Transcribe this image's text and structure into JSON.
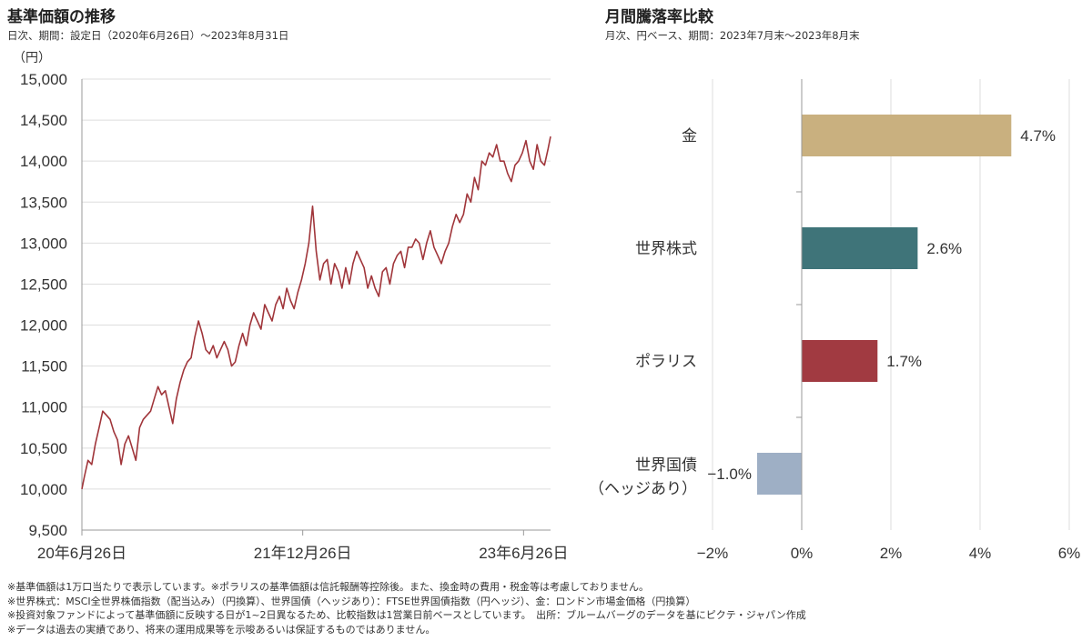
{
  "chart_data": [
    {
      "type": "line",
      "title": "基準価額の推移",
      "subtitle": "日次、期間：設定日（2020年6月26日）～2023年8月31日",
      "ylabel": "（円）",
      "ylim": [
        9500,
        15000
      ],
      "yticks": [
        9500,
        10000,
        10500,
        11000,
        11500,
        12000,
        12500,
        13000,
        13500,
        14000,
        14500,
        15000
      ],
      "ytick_labels": [
        "9,500",
        "10,000",
        "10,500",
        "11,000",
        "11,500",
        "12,000",
        "12,500",
        "13,000",
        "13,500",
        "14,000",
        "14,500",
        "15,000"
      ],
      "xlim": [
        0,
        38.2
      ],
      "xticks": [
        {
          "x": 0,
          "label": "20年6月26日"
        },
        {
          "x": 18,
          "label": "21年12月26日"
        },
        {
          "x": 36,
          "label": "23年6月26日"
        }
      ],
      "line_color": "#a0353a",
      "series": [
        {
          "name": "基準価額",
          "x": [
            0,
            0.2,
            0.5,
            0.8,
            1.1,
            1.4,
            1.7,
            2.0,
            2.3,
            2.6,
            2.9,
            3.2,
            3.5,
            3.8,
            4.1,
            4.4,
            4.7,
            5.0,
            5.3,
            5.6,
            5.9,
            6.2,
            6.5,
            6.8,
            7.1,
            7.4,
            7.7,
            8.0,
            8.3,
            8.6,
            8.9,
            9.2,
            9.5,
            9.8,
            10.1,
            10.4,
            10.7,
            11.0,
            11.3,
            11.6,
            11.9,
            12.2,
            12.5,
            12.8,
            13.1,
            13.4,
            13.7,
            14.0,
            14.3,
            14.6,
            14.9,
            15.2,
            15.5,
            15.8,
            16.1,
            16.4,
            16.7,
            17.0,
            17.3,
            17.6,
            17.9,
            18.2,
            18.5,
            18.8,
            19.1,
            19.4,
            19.7,
            20.0,
            20.3,
            20.6,
            20.9,
            21.2,
            21.5,
            21.8,
            22.1,
            22.4,
            22.7,
            23.0,
            23.3,
            23.6,
            23.9,
            24.2,
            24.5,
            24.8,
            25.1,
            25.4,
            25.7,
            26.0,
            26.3,
            26.6,
            26.9,
            27.2,
            27.5,
            27.8,
            28.1,
            28.4,
            28.7,
            29.0,
            29.3,
            29.6,
            29.9,
            30.2,
            30.5,
            30.8,
            31.1,
            31.4,
            31.7,
            32.0,
            32.3,
            32.6,
            32.9,
            33.2,
            33.5,
            33.8,
            34.1,
            34.4,
            34.7,
            35.0,
            35.3,
            35.6,
            35.9,
            36.2,
            36.5,
            36.8,
            37.1,
            37.4,
            37.7,
            38.0,
            38.2
          ],
          "values": [
            10000,
            10150,
            10350,
            10300,
            10550,
            10750,
            10950,
            10900,
            10850,
            10700,
            10600,
            10300,
            10550,
            10650,
            10500,
            10350,
            10750,
            10850,
            10900,
            10950,
            11100,
            11250,
            11150,
            11200,
            11000,
            10800,
            11100,
            11300,
            11450,
            11550,
            11600,
            11850,
            12050,
            11900,
            11700,
            11650,
            11750,
            11600,
            11700,
            11800,
            11700,
            11500,
            11550,
            11750,
            11900,
            11750,
            12000,
            12150,
            12050,
            11950,
            12250,
            12150,
            12050,
            12250,
            12350,
            12200,
            12450,
            12300,
            12200,
            12400,
            12550,
            12750,
            13000,
            13450,
            12900,
            12550,
            12750,
            12800,
            12500,
            12750,
            12650,
            12450,
            12700,
            12500,
            12750,
            12900,
            12800,
            12700,
            12450,
            12600,
            12450,
            12350,
            12650,
            12700,
            12500,
            12750,
            12850,
            12900,
            12700,
            12950,
            12950,
            13050,
            13000,
            12800,
            13000,
            13150,
            12950,
            12850,
            12750,
            12900,
            13000,
            13200,
            13350,
            13250,
            13350,
            13600,
            13500,
            13800,
            13650,
            14000,
            13950,
            14100,
            14050,
            14200,
            14000,
            14000,
            13850,
            13750,
            13950,
            14000,
            14100,
            14250,
            14000,
            13900,
            14200,
            14000,
            13950,
            14150,
            14300
          ]
        }
      ]
    },
    {
      "type": "bar",
      "orientation": "horizontal",
      "title": "月間騰落率比較",
      "subtitle": "月次、円ベース、期間：2023年7月末～2023年8月末",
      "categories": [
        "金",
        "世界株式",
        "ポラリス",
        "世界国債"
      ],
      "category_sublabels": [
        "",
        "",
        "",
        "（ヘッジあり）"
      ],
      "values": [
        4.7,
        2.6,
        1.7,
        -1.0
      ],
      "value_labels": [
        "4.7%",
        "2.6%",
        "1.7%",
        "−1.0%"
      ],
      "colors": [
        "#c9b07f",
        "#3f7479",
        "#a13a41",
        "#9eafc5"
      ],
      "xlim": [
        -2,
        6
      ],
      "xticks": [
        -2,
        0,
        2,
        4,
        6
      ],
      "xtick_labels": [
        "−2%",
        "0%",
        "2%",
        "4%",
        "6%"
      ],
      "unit": "%"
    }
  ],
  "notes": [
    "※基準価額は1万口当たりで表示しています。※ポラリスの基準価額は信託報酬等控除後。また、換金時の費用・税金等は考慮しておりません。",
    "※世界株式：MSCI全世界株価指数（配当込み）（円換算）、世界国債（ヘッジあり）：FTSE世界国債指数（円ヘッジ）、金：ロンドン市場金価格（円換算）",
    "※投資対象ファンドによって基準価額に反映する日が1~2日異なるため、比較指数は1営業日前ベースとしています。　出所：ブルームバーグのデータを基にピクテ・ジャパン作成",
    "※データは過去の実績であり、将来の運用成果等を示唆あるいは保証するものではありません。"
  ]
}
